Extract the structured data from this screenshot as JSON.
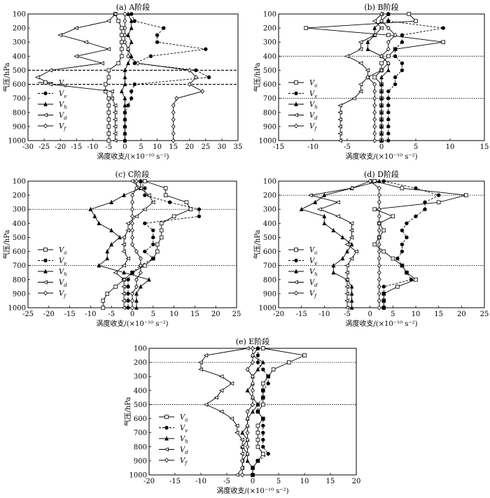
{
  "colors": {
    "axis": "#000000",
    "series": "#000000",
    "background": "#ffffff"
  },
  "series_meta": [
    {
      "name": "Va",
      "marker": "square-open",
      "dash": "solid"
    },
    {
      "name": "Vv",
      "marker": "circle-filled",
      "dash": "dashed"
    },
    {
      "name": "Vh",
      "marker": "triangle-filled",
      "dash": "solid"
    },
    {
      "name": "Vd",
      "marker": "triangle-left-open",
      "dash": "solid"
    },
    {
      "name": "Vf",
      "marker": "diamond-open",
      "dash": "solid"
    }
  ],
  "chart_data": [
    {
      "type": "line",
      "title": "(a) A阶段",
      "xlabel": "涡度收支/(×10⁻¹⁰ s⁻²)",
      "ylabel": "气压/hPa",
      "xlim": [
        -30,
        35
      ],
      "xticks": [
        -30,
        -25,
        -20,
        -15,
        -10,
        -5,
        0,
        5,
        10,
        15,
        20,
        25,
        30,
        35
      ],
      "ylim": [
        100,
        1000
      ],
      "yticks": [
        100,
        200,
        300,
        400,
        500,
        600,
        700,
        800,
        900,
        1000
      ],
      "y": [
        100,
        150,
        200,
        250,
        300,
        350,
        400,
        450,
        500,
        550,
        600,
        650,
        700,
        750,
        800,
        850,
        900,
        950,
        1000
      ],
      "reference_lines": [
        500,
        600
      ],
      "series": [
        {
          "name": "Va",
          "values": [
            -3,
            -2,
            -1,
            -1,
            -1,
            -1,
            -1,
            -2,
            -5,
            -5,
            -6,
            -6,
            -5,
            -5,
            -5,
            -5,
            -5,
            -5,
            -5
          ]
        },
        {
          "name": "Vv",
          "values": [
            2,
            3,
            12,
            10,
            10,
            25,
            8,
            3,
            22,
            26,
            3,
            2,
            2,
            1,
            0,
            0,
            0,
            0,
            0
          ]
        },
        {
          "name": "Vh",
          "values": [
            1,
            2,
            2,
            1,
            2,
            1,
            2,
            1,
            0,
            0,
            0,
            -1,
            0,
            0,
            0,
            0,
            0,
            0,
            0
          ]
        },
        {
          "name": "Vd",
          "values": [
            -3,
            -5,
            -15,
            -20,
            -12,
            -5,
            -15,
            -7,
            -23,
            -27,
            -23,
            -4,
            -4,
            -3,
            -3,
            -3,
            -3,
            -3,
            -3
          ]
        },
        {
          "name": "Vf",
          "values": [
            0,
            0,
            0,
            0,
            0,
            1,
            1,
            4,
            20,
            22,
            20,
            24,
            16,
            15,
            15,
            15,
            15,
            15,
            15
          ]
        }
      ]
    },
    {
      "type": "line",
      "title": "(b) B阶段",
      "xlabel": "涡度收支/(×10⁻¹⁰ s⁻²)",
      "ylabel": "气压/hPa",
      "xlim": [
        -15,
        15
      ],
      "xticks": [
        -15,
        -10,
        -5,
        0,
        5,
        10,
        15
      ],
      "ylim": [
        100,
        1000
      ],
      "yticks": [
        100,
        200,
        300,
        400,
        500,
        600,
        700,
        800,
        900,
        1000
      ],
      "y": [
        100,
        150,
        200,
        250,
        300,
        350,
        400,
        450,
        500,
        550,
        600,
        650,
        700,
        750,
        800,
        850,
        900,
        950,
        1000
      ],
      "reference_lines": [
        400,
        700
      ],
      "series": [
        {
          "name": "Va",
          "values": [
            4,
            5,
            -11,
            1,
            9,
            2,
            1,
            0,
            0,
            -1,
            0,
            0,
            0,
            0,
            0,
            0,
            0,
            0,
            0
          ]
        },
        {
          "name": "Vv",
          "values": [
            1,
            1,
            9,
            3,
            3,
            2,
            2,
            3,
            3,
            2,
            2,
            1,
            1,
            1,
            1,
            1,
            1,
            1,
            1
          ]
        },
        {
          "name": "Vh",
          "values": [
            1,
            0,
            -1,
            -1,
            -2,
            -2,
            0,
            1,
            1,
            0,
            0,
            0,
            0,
            0,
            0,
            0,
            0,
            0,
            0
          ]
        },
        {
          "name": "Vd",
          "values": [
            0,
            -1,
            0,
            -1,
            -3,
            -3,
            -5,
            -3,
            -2,
            -2,
            -3,
            -3,
            -4,
            -6,
            -6,
            -6,
            -6,
            -6,
            -6
          ]
        },
        {
          "name": "Vf",
          "values": [
            0,
            0,
            1,
            2,
            1,
            1,
            0,
            1,
            0,
            -2,
            -1,
            -1,
            -1,
            -1,
            -1,
            -1,
            -1,
            -1,
            -1
          ]
        }
      ]
    },
    {
      "type": "line",
      "title": "(c) C阶段",
      "xlabel": "涡度收支/(×10⁻¹⁰ s⁻²)",
      "ylabel": "气压/hPa",
      "xlim": [
        -25,
        25
      ],
      "xticks": [
        -25,
        -20,
        -15,
        -10,
        -5,
        0,
        5,
        10,
        15,
        20,
        25
      ],
      "ylim": [
        100,
        1000
      ],
      "yticks": [
        100,
        200,
        300,
        400,
        500,
        600,
        700,
        800,
        900,
        1000
      ],
      "y": [
        100,
        150,
        200,
        250,
        300,
        350,
        400,
        450,
        500,
        550,
        600,
        650,
        700,
        750,
        800,
        850,
        900,
        950,
        1000
      ],
      "reference_lines": [
        300,
        700
      ],
      "series": [
        {
          "name": "Va",
          "values": [
            3,
            8,
            8,
            13,
            14,
            10,
            7,
            7,
            7,
            6,
            6,
            5,
            3,
            0,
            -2,
            -4,
            -6,
            -7,
            -7
          ]
        },
        {
          "name": "Vv",
          "values": [
            2,
            3,
            3,
            9,
            16,
            16,
            3,
            5,
            5,
            5,
            3,
            5,
            2,
            0,
            -1,
            -1,
            -1,
            -1,
            -1
          ]
        },
        {
          "name": "Vh",
          "values": [
            2,
            2,
            -2,
            -5,
            -10,
            -9,
            -8,
            -5,
            -3,
            -5,
            -6,
            -6,
            -8,
            -2,
            4,
            2,
            1,
            1,
            1
          ]
        },
        {
          "name": "Vd",
          "values": [
            0,
            2,
            4,
            5,
            3,
            1,
            -1,
            -1,
            -2,
            -2,
            -2,
            -1,
            -2,
            -4,
            -2,
            -2,
            -2,
            -2,
            -2
          ]
        },
        {
          "name": "Vf",
          "values": [
            1,
            1,
            0,
            0,
            0,
            0,
            0,
            0,
            0,
            0,
            1,
            2,
            2,
            2,
            1,
            1,
            0,
            0,
            0
          ]
        }
      ]
    },
    {
      "type": "line",
      "title": "(d) D阶段",
      "xlabel": "涡度收支/(×10⁻¹⁰ s⁻²)",
      "ylabel": "气压/hPa",
      "xlim": [
        -20,
        25
      ],
      "xticks": [
        -20,
        -15,
        -10,
        -5,
        0,
        5,
        10,
        15,
        20,
        25
      ],
      "ylim": [
        100,
        1000
      ],
      "yticks": [
        100,
        200,
        300,
        400,
        500,
        600,
        700,
        800,
        900,
        1000
      ],
      "y": [
        100,
        150,
        200,
        250,
        300,
        350,
        400,
        450,
        500,
        550,
        600,
        650,
        700,
        750,
        800,
        850,
        900,
        950,
        1000
      ],
      "reference_lines": [
        200,
        700
      ],
      "series": [
        {
          "name": "Va",
          "values": [
            1,
            7,
            21,
            15,
            1,
            5,
            2,
            3,
            2,
            1,
            3,
            5,
            7,
            8,
            10,
            6,
            3,
            3,
            3
          ]
        },
        {
          "name": "Vv",
          "values": [
            3,
            10,
            15,
            12,
            12,
            10,
            8,
            7,
            8,
            7,
            7,
            6,
            7,
            8,
            9,
            3,
            3,
            3,
            3
          ]
        },
        {
          "name": "Vh",
          "values": [
            2,
            -4,
            -10,
            -12,
            -15,
            -10,
            -10,
            -8,
            -6,
            -4,
            -5,
            -6,
            -8,
            -8,
            -5,
            -4,
            -4,
            -4,
            -4
          ]
        },
        {
          "name": "Vd",
          "values": [
            0,
            -4,
            -13,
            -7,
            -11,
            -7,
            -4,
            -4,
            -4,
            -5,
            -3,
            -4,
            -5,
            -5,
            -5,
            -5,
            -5,
            -5,
            -5
          ]
        },
        {
          "name": "Vf",
          "values": [
            0,
            2,
            2,
            2,
            2,
            2,
            2,
            2,
            2,
            2,
            2,
            2,
            2,
            2,
            2,
            2,
            2,
            2,
            2
          ]
        }
      ]
    },
    {
      "type": "line",
      "title": "(e) E阶段",
      "xlabel": "涡度收支/(×10⁻¹⁰ s⁻²)",
      "ylabel": "气压/hPa",
      "xlim": [
        -20,
        20
      ],
      "xticks": [
        -20,
        -15,
        -10,
        -5,
        0,
        5,
        10,
        15,
        20
      ],
      "ylim": [
        100,
        1000
      ],
      "yticks": [
        100,
        200,
        300,
        400,
        500,
        600,
        700,
        800,
        900,
        1000
      ],
      "y": [
        100,
        150,
        200,
        250,
        300,
        350,
        400,
        450,
        500,
        550,
        600,
        650,
        700,
        750,
        800,
        850,
        900,
        950,
        1000
      ],
      "reference_lines": [
        200,
        500
      ],
      "series": [
        {
          "name": "Va",
          "values": [
            2,
            10,
            7,
            4,
            3,
            2,
            2,
            2,
            2,
            1,
            2,
            1,
            1,
            1,
            1,
            2,
            1,
            0,
            0
          ]
        },
        {
          "name": "Vv",
          "values": [
            1,
            1,
            1,
            2,
            3,
            3,
            2,
            2,
            1,
            1,
            2,
            2,
            2,
            2,
            2,
            3,
            1,
            0,
            0
          ]
        },
        {
          "name": "Vh",
          "values": [
            1,
            0,
            2,
            1,
            0,
            0,
            -1,
            0,
            1,
            0,
            -1,
            -1,
            -2,
            -1,
            -2,
            -1,
            -1,
            0,
            0
          ]
        },
        {
          "name": "Vd",
          "values": [
            -1,
            -9,
            -10,
            -10,
            -6,
            -4,
            -6,
            -7,
            -9,
            -6,
            -4,
            -3,
            -3,
            -2,
            -2,
            -2,
            -2,
            -2,
            -3
          ]
        },
        {
          "name": "Vf",
          "values": [
            0,
            0,
            0,
            -1,
            0,
            0,
            0,
            0,
            0,
            -1,
            -1,
            -1,
            -1,
            -1,
            -1,
            -1,
            -2,
            -2,
            -2
          ]
        }
      ]
    }
  ]
}
